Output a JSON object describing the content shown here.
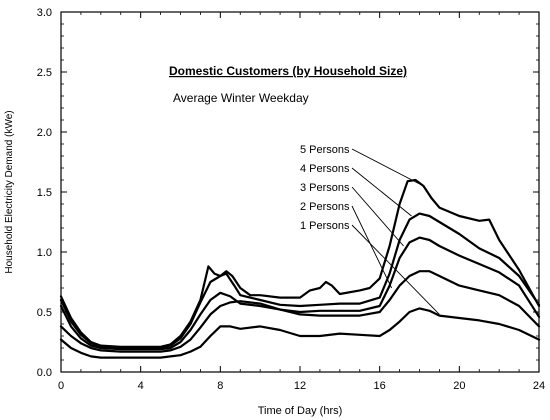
{
  "chart_data": {
    "type": "line",
    "title": "Domestic Customers (by Household Size)",
    "subtitle": "Average Winter Weekday",
    "xlabel": "Time of Day (hrs)",
    "ylabel": "Household Electricity Demand (kWe)",
    "xlim": [
      0,
      24
    ],
    "ylim": [
      0,
      3.0
    ],
    "xticks": [
      0,
      4,
      8,
      12,
      16,
      20,
      24
    ],
    "yticks": [
      0.0,
      0.5,
      1.0,
      1.5,
      2.0,
      2.5,
      3.0
    ],
    "grid": false,
    "series": [
      {
        "name": "5 Persons",
        "points": [
          [
            0,
            0.63
          ],
          [
            0.5,
            0.45
          ],
          [
            1,
            0.33
          ],
          [
            1.5,
            0.25
          ],
          [
            2,
            0.22
          ],
          [
            3,
            0.21
          ],
          [
            4,
            0.21
          ],
          [
            5,
            0.21
          ],
          [
            5.5,
            0.23
          ],
          [
            6,
            0.3
          ],
          [
            6.5,
            0.42
          ],
          [
            7,
            0.6
          ],
          [
            7.4,
            0.88
          ],
          [
            7.7,
            0.82
          ],
          [
            8,
            0.8
          ],
          [
            8.3,
            0.84
          ],
          [
            8.6,
            0.8
          ],
          [
            9,
            0.7
          ],
          [
            9.5,
            0.64
          ],
          [
            10,
            0.64
          ],
          [
            11,
            0.62
          ],
          [
            12,
            0.62
          ],
          [
            12.5,
            0.68
          ],
          [
            13,
            0.7
          ],
          [
            13.3,
            0.75
          ],
          [
            13.6,
            0.72
          ],
          [
            14,
            0.65
          ],
          [
            15,
            0.68
          ],
          [
            15.5,
            0.7
          ],
          [
            16,
            0.78
          ],
          [
            16.5,
            1.05
          ],
          [
            17,
            1.4
          ],
          [
            17.4,
            1.59
          ],
          [
            17.8,
            1.6
          ],
          [
            18.2,
            1.55
          ],
          [
            18.6,
            1.45
          ],
          [
            19,
            1.37
          ],
          [
            20,
            1.3
          ],
          [
            21,
            1.26
          ],
          [
            21.5,
            1.27
          ],
          [
            22,
            1.1
          ],
          [
            23,
            0.85
          ],
          [
            24,
            0.55
          ]
        ]
      },
      {
        "name": "4 Persons",
        "points": [
          [
            0,
            0.6
          ],
          [
            0.5,
            0.42
          ],
          [
            1,
            0.31
          ],
          [
            1.5,
            0.24
          ],
          [
            2,
            0.21
          ],
          [
            3,
            0.2
          ],
          [
            4,
            0.2
          ],
          [
            5,
            0.2
          ],
          [
            5.5,
            0.22
          ],
          [
            6,
            0.28
          ],
          [
            6.5,
            0.4
          ],
          [
            7,
            0.58
          ],
          [
            7.5,
            0.75
          ],
          [
            8,
            0.8
          ],
          [
            8.3,
            0.82
          ],
          [
            8.7,
            0.72
          ],
          [
            9,
            0.64
          ],
          [
            10,
            0.6
          ],
          [
            11,
            0.56
          ],
          [
            12,
            0.55
          ],
          [
            13,
            0.56
          ],
          [
            14,
            0.57
          ],
          [
            15,
            0.57
          ],
          [
            16,
            0.62
          ],
          [
            16.5,
            0.82
          ],
          [
            17,
            1.1
          ],
          [
            17.5,
            1.27
          ],
          [
            18,
            1.32
          ],
          [
            18.5,
            1.3
          ],
          [
            19,
            1.25
          ],
          [
            20,
            1.15
          ],
          [
            21,
            1.03
          ],
          [
            22,
            0.95
          ],
          [
            23,
            0.8
          ],
          [
            24,
            0.56
          ]
        ]
      },
      {
        "name": "3 Persons",
        "points": [
          [
            0,
            0.55
          ],
          [
            0.5,
            0.38
          ],
          [
            1,
            0.28
          ],
          [
            1.5,
            0.22
          ],
          [
            2,
            0.2
          ],
          [
            3,
            0.19
          ],
          [
            4,
            0.19
          ],
          [
            5,
            0.19
          ],
          [
            5.5,
            0.2
          ],
          [
            6,
            0.25
          ],
          [
            6.5,
            0.35
          ],
          [
            7,
            0.48
          ],
          [
            7.5,
            0.6
          ],
          [
            8,
            0.66
          ],
          [
            8.5,
            0.63
          ],
          [
            9,
            0.57
          ],
          [
            10,
            0.55
          ],
          [
            11,
            0.52
          ],
          [
            12,
            0.5
          ],
          [
            13,
            0.51
          ],
          [
            14,
            0.51
          ],
          [
            15,
            0.51
          ],
          [
            16,
            0.55
          ],
          [
            16.5,
            0.72
          ],
          [
            17,
            0.95
          ],
          [
            17.5,
            1.08
          ],
          [
            18,
            1.12
          ],
          [
            18.5,
            1.1
          ],
          [
            19,
            1.05
          ],
          [
            20,
            0.97
          ],
          [
            21,
            0.9
          ],
          [
            22,
            0.83
          ],
          [
            23,
            0.72
          ],
          [
            24,
            0.46
          ]
        ]
      },
      {
        "name": "2 Persons",
        "points": [
          [
            0,
            0.38
          ],
          [
            0.5,
            0.3
          ],
          [
            1,
            0.24
          ],
          [
            1.5,
            0.2
          ],
          [
            2,
            0.18
          ],
          [
            3,
            0.17
          ],
          [
            4,
            0.17
          ],
          [
            5,
            0.17
          ],
          [
            5.5,
            0.18
          ],
          [
            6,
            0.21
          ],
          [
            6.5,
            0.27
          ],
          [
            7,
            0.37
          ],
          [
            7.5,
            0.48
          ],
          [
            8,
            0.55
          ],
          [
            8.5,
            0.58
          ],
          [
            9,
            0.59
          ],
          [
            10,
            0.57
          ],
          [
            11,
            0.52
          ],
          [
            12,
            0.48
          ],
          [
            13,
            0.47
          ],
          [
            14,
            0.47
          ],
          [
            15,
            0.47
          ],
          [
            16,
            0.5
          ],
          [
            16.5,
            0.6
          ],
          [
            17,
            0.72
          ],
          [
            17.5,
            0.8
          ],
          [
            18,
            0.84
          ],
          [
            18.5,
            0.84
          ],
          [
            19,
            0.8
          ],
          [
            20,
            0.72
          ],
          [
            21,
            0.68
          ],
          [
            22,
            0.64
          ],
          [
            23,
            0.55
          ],
          [
            24,
            0.38
          ]
        ]
      },
      {
        "name": "1 Persons",
        "points": [
          [
            0,
            0.27
          ],
          [
            0.5,
            0.2
          ],
          [
            1,
            0.16
          ],
          [
            1.5,
            0.13
          ],
          [
            2,
            0.12
          ],
          [
            3,
            0.12
          ],
          [
            4,
            0.12
          ],
          [
            5,
            0.12
          ],
          [
            5.5,
            0.13
          ],
          [
            6,
            0.14
          ],
          [
            6.5,
            0.17
          ],
          [
            7,
            0.21
          ],
          [
            7.5,
            0.3
          ],
          [
            8,
            0.38
          ],
          [
            8.5,
            0.38
          ],
          [
            9,
            0.36
          ],
          [
            10,
            0.38
          ],
          [
            11,
            0.35
          ],
          [
            12,
            0.3
          ],
          [
            13,
            0.3
          ],
          [
            14,
            0.32
          ],
          [
            15,
            0.31
          ],
          [
            16,
            0.3
          ],
          [
            16.5,
            0.35
          ],
          [
            17,
            0.42
          ],
          [
            17.5,
            0.5
          ],
          [
            18,
            0.53
          ],
          [
            18.5,
            0.51
          ],
          [
            19,
            0.47
          ],
          [
            20,
            0.45
          ],
          [
            21,
            0.43
          ],
          [
            22,
            0.4
          ],
          [
            23,
            0.35
          ],
          [
            24,
            0.27
          ]
        ]
      }
    ]
  }
}
